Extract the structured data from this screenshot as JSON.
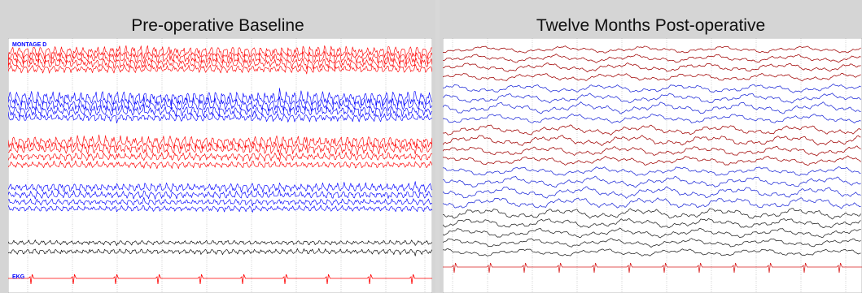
{
  "panels": [
    {
      "title": "Pre-operative Baseline",
      "corner_label": "MONTAGE D",
      "ekg_label": "EKG",
      "colors": [
        "#ff0000",
        "#0000ff",
        "#000000"
      ]
    },
    {
      "title": "Twelve Months Post-operative",
      "colors": [
        "#a00000",
        "#1f2bd8",
        "#222222",
        "#d71f1f"
      ]
    }
  ]
}
